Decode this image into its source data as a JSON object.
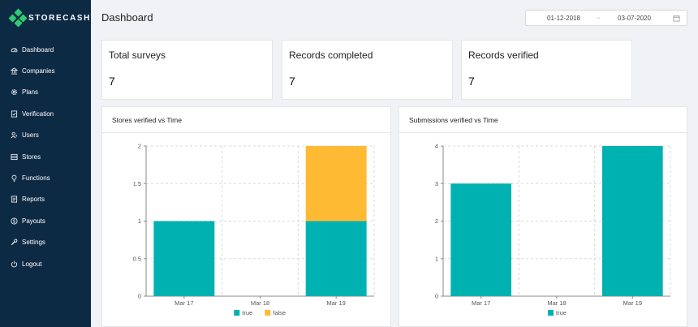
{
  "brand": {
    "name": "STORECASH"
  },
  "sidebar": {
    "items": [
      {
        "label": "Dashboard",
        "icon": "dashboard-icon"
      },
      {
        "label": "Companies",
        "icon": "bank-icon"
      },
      {
        "label": "Plans",
        "icon": "gear-icon"
      },
      {
        "label": "Verification",
        "icon": "file-check-icon"
      },
      {
        "label": "Users",
        "icon": "users-icon"
      },
      {
        "label": "Stores",
        "icon": "database-icon"
      },
      {
        "label": "Functions",
        "icon": "bulb-icon"
      },
      {
        "label": "Reports",
        "icon": "report-icon"
      },
      {
        "label": "Payouts",
        "icon": "dollar-icon"
      },
      {
        "label": "Settings",
        "icon": "tool-icon"
      },
      {
        "label": "Logout",
        "icon": "power-icon"
      }
    ]
  },
  "header": {
    "title": "Dashboard",
    "date_start": "01-12-2018",
    "date_separator": "~",
    "date_end": "03-07-2020"
  },
  "stats": [
    {
      "title": "Total surveys",
      "value": "7"
    },
    {
      "title": "Records completed",
      "value": "7"
    },
    {
      "title": "Records verified",
      "value": "7"
    }
  ],
  "colors": {
    "sidebar": "#0d2a45",
    "true": "#00b1b1",
    "false": "#ffba33",
    "brand_accent": "#2ecc71"
  },
  "chart_data": [
    {
      "type": "bar",
      "title": "Stores verified vs Time",
      "stacked": true,
      "categories": [
        "Mar 17",
        "Mar 18",
        "Mar 19"
      ],
      "series": [
        {
          "name": "true",
          "values": [
            1,
            0,
            1
          ]
        },
        {
          "name": "false",
          "values": [
            0,
            0,
            1
          ]
        }
      ],
      "ylim": [
        0,
        2
      ],
      "yticks": [
        "0",
        "0.5",
        "1",
        "1.5",
        "2"
      ],
      "grid": true,
      "legend": "bottom"
    },
    {
      "type": "bar",
      "title": "Submissions verified vs Time",
      "stacked": true,
      "categories": [
        "Mar 17",
        "Mar 18",
        "Mar 19"
      ],
      "series": [
        {
          "name": "true",
          "values": [
            3,
            0,
            4
          ]
        }
      ],
      "ylim": [
        0,
        4
      ],
      "yticks": [
        "0",
        "1",
        "2",
        "3",
        "4"
      ],
      "grid": true,
      "legend": "bottom"
    }
  ]
}
